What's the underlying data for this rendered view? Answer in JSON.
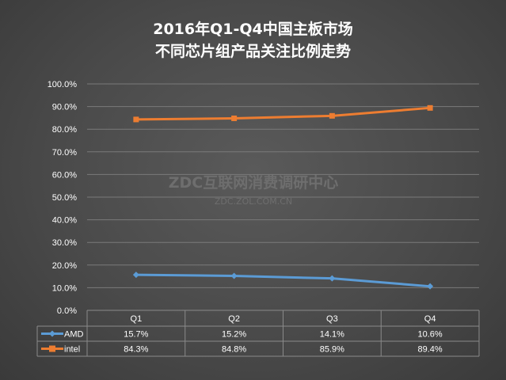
{
  "chart_data": {
    "type": "line",
    "title_line1": "2016年Q1-Q4中国主板市场",
    "title_line2": "不同芯片组产品关注比例走势",
    "categories": [
      "Q1",
      "Q2",
      "Q3",
      "Q4"
    ],
    "y_ticks": [
      "100.0%",
      "90.0%",
      "80.0%",
      "70.0%",
      "60.0%",
      "50.0%",
      "40.0%",
      "30.0%",
      "20.0%",
      "10.0%",
      "0.0%"
    ],
    "ylim": [
      0,
      100
    ],
    "grid": true,
    "legend_placement": "data-table",
    "series": [
      {
        "name": "AMD",
        "values": [
          15.7,
          15.2,
          14.1,
          10.6
        ],
        "labels": [
          "15.7%",
          "15.2%",
          "14.1%",
          "10.6%"
        ],
        "color": "#5b9bd5"
      },
      {
        "name": "intel",
        "values": [
          84.3,
          84.8,
          85.9,
          89.4
        ],
        "labels": [
          "84.3%",
          "84.8%",
          "85.9%",
          "89.4%"
        ],
        "color": "#ed7d31"
      }
    ]
  },
  "watermark": {
    "line1": "ZDC互联网消费调研中心",
    "line2": "ZDC.ZOL.COM.CN"
  }
}
